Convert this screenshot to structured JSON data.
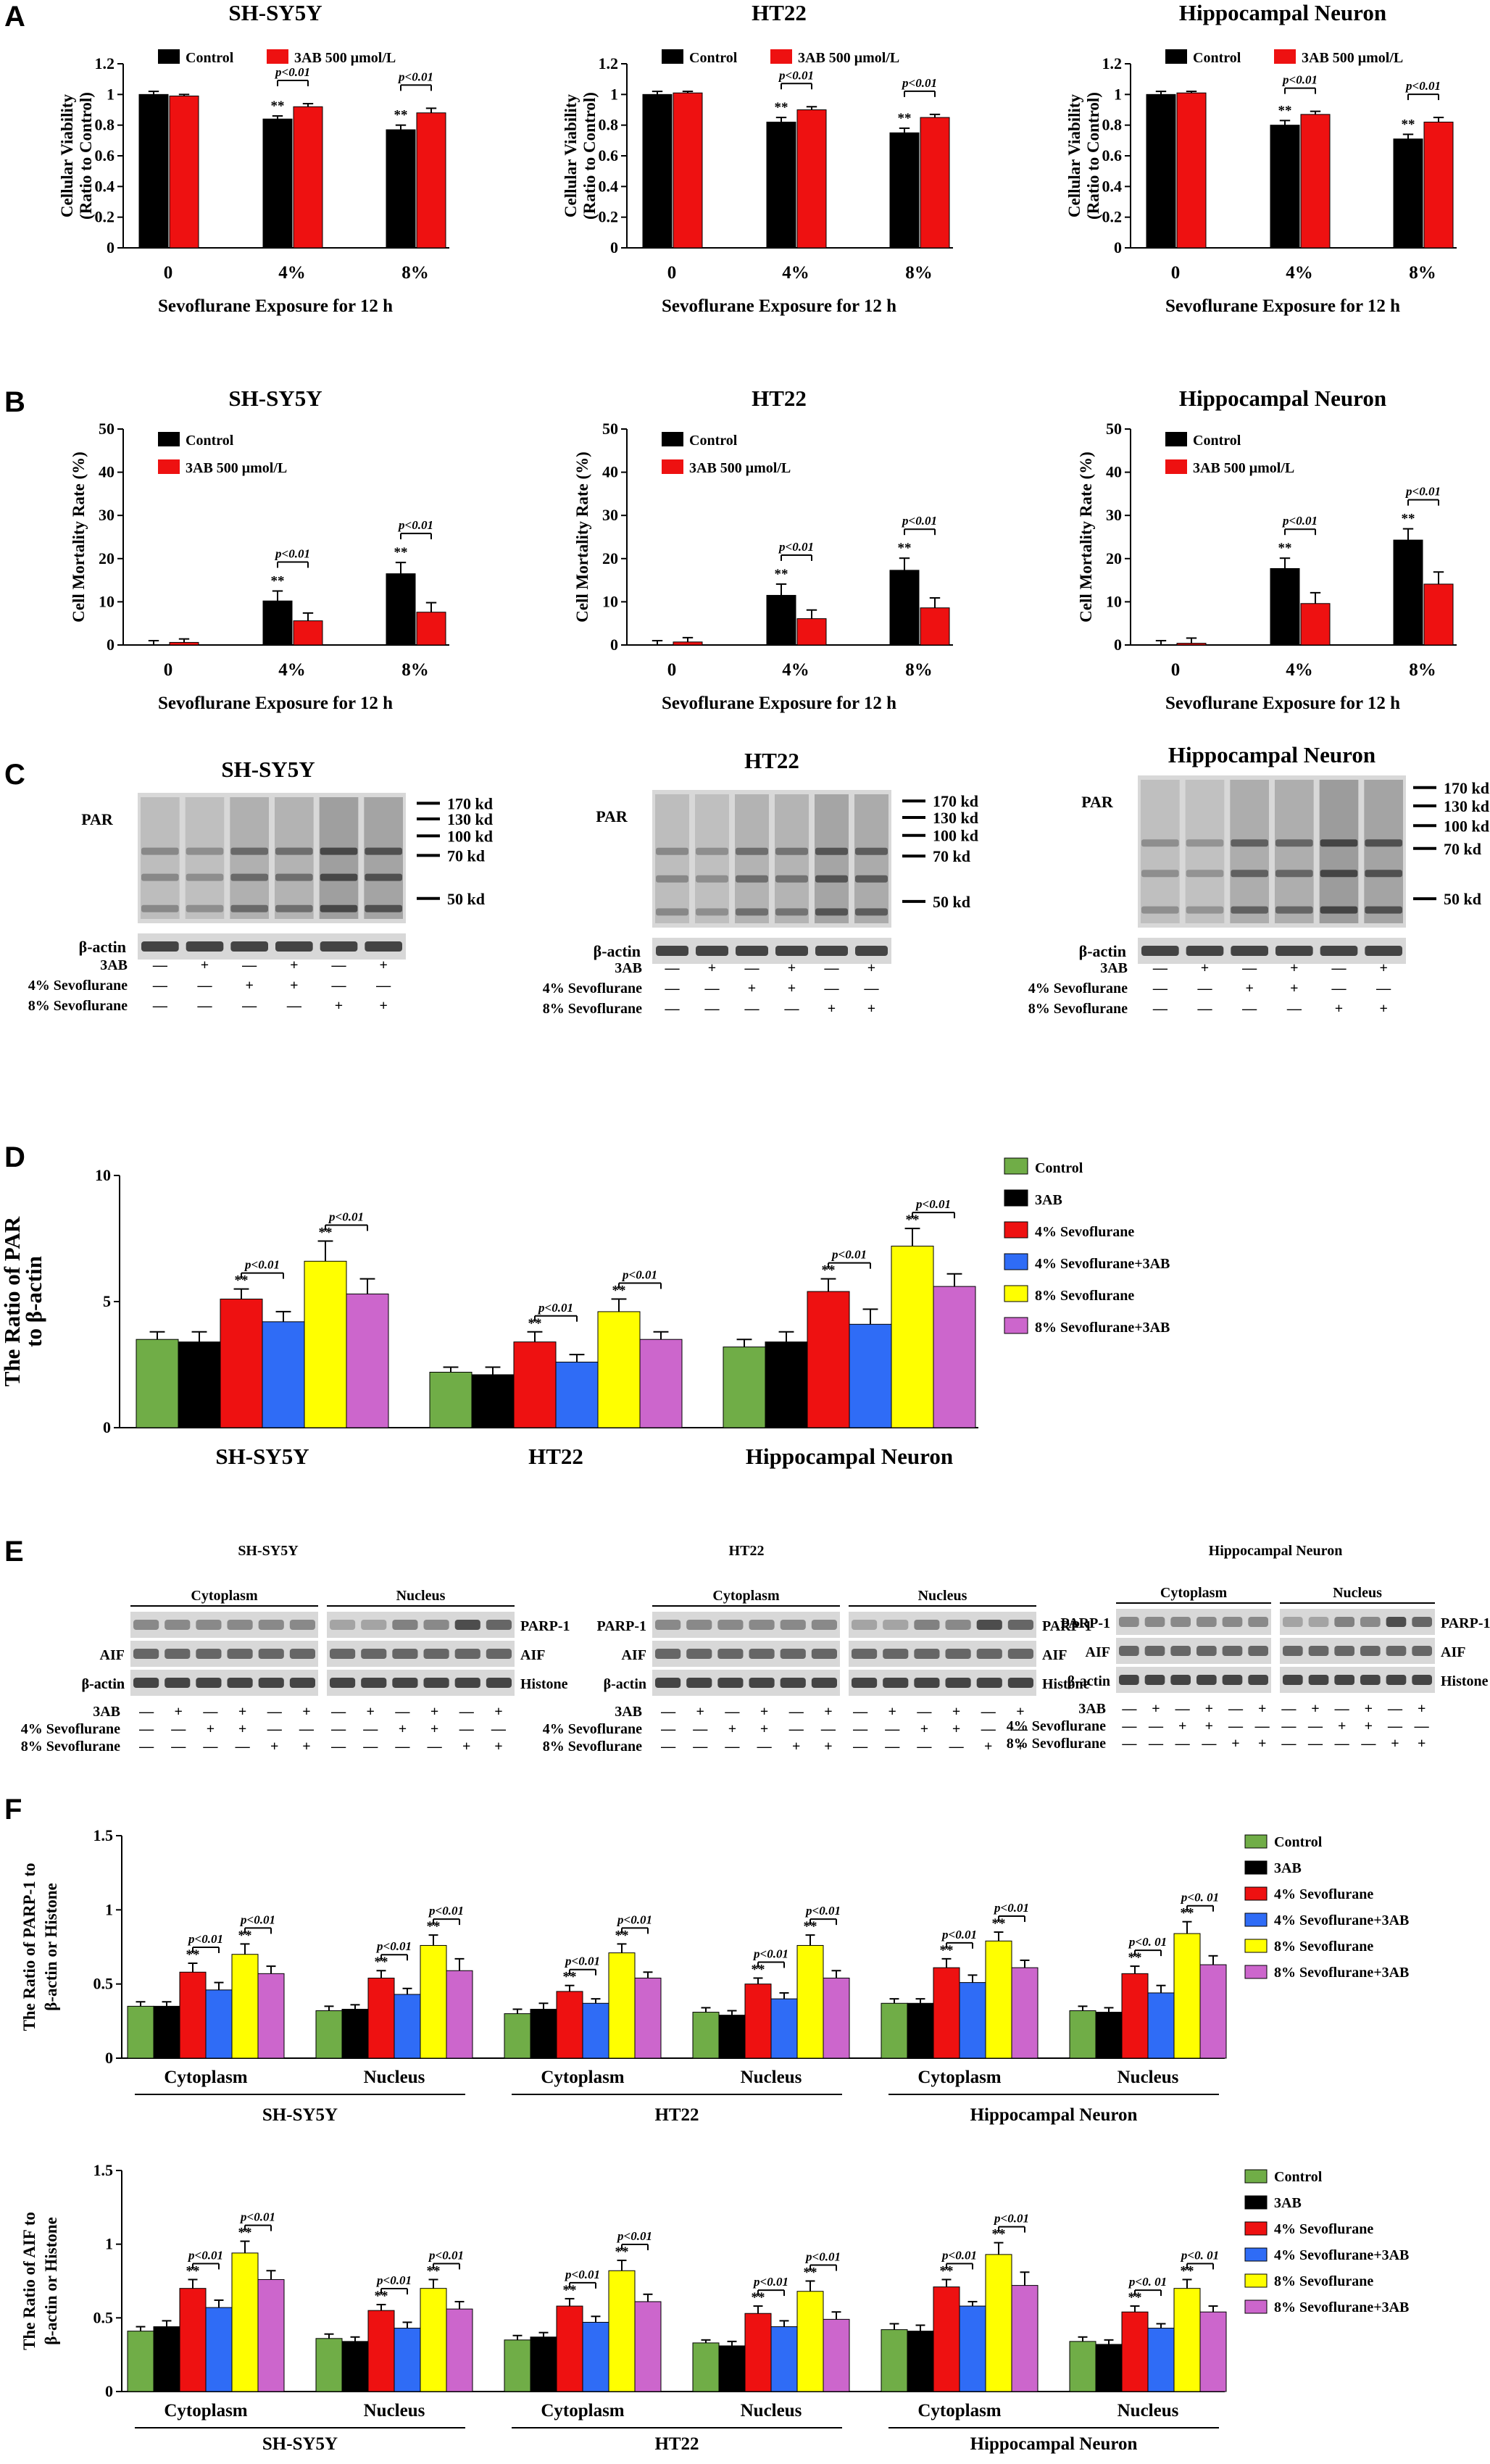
{
  "figure": {
    "panel_labels": [
      "A",
      "B",
      "C",
      "D",
      "E",
      "F"
    ],
    "cells": [
      "SH-SY5Y",
      "HT22",
      "Hippocampal Neuron"
    ],
    "exposure_xlabel": "Sevoflurane Exposure for 12 h",
    "doses": [
      "0",
      "4%",
      "8%"
    ],
    "two_legend": [
      "Control",
      "3AB 500 μmol/L"
    ],
    "six_legend": [
      "Control",
      "3AB",
      "4% Sevoflurane",
      "4% Sevoflurane+3AB",
      "8% Sevoflurane",
      "8% Sevoflurane+3AB"
    ],
    "colors": {
      "black": "#000000",
      "red": "#ee1111",
      "green": "#70ad47",
      "blue": "#2f6cf6",
      "yellow": "#ffff00",
      "purple": "#cc66cc",
      "blot_bg": "#d8d8d8",
      "band": "#2a2a2a"
    },
    "sig_label": "**",
    "p_label": "p<0.01",
    "p_label_alt": "p<0. 01",
    "compartments": [
      "Cytoplasm",
      "Nucleus"
    ]
  },
  "panel_a": {
    "ylabel": [
      "Cellular Viability",
      "(Ratio to Control)"
    ],
    "yticks": [
      "0",
      "0.2",
      "0.4",
      "0.6",
      "0.8",
      "1",
      "1.2"
    ]
  },
  "panel_b": {
    "ylabel": "Cell Mortality Rate (%)",
    "yticks": [
      "0",
      "10",
      "20",
      "30",
      "40",
      "50"
    ]
  },
  "panel_c": {
    "protein": "PAR",
    "loading": "β-actin",
    "markers": [
      "170 kd",
      "130 kd",
      "100 kd",
      "70 kd",
      "50 kd"
    ],
    "treatment_labels": [
      "3AB",
      "4% Sevoflurane",
      "8% Sevoflurane"
    ],
    "pattern": [
      [
        "—",
        "+",
        "—",
        "+",
        "—",
        "+"
      ],
      [
        "—",
        "—",
        "+",
        "+",
        "—",
        "—"
      ],
      [
        "—",
        "—",
        "—",
        "—",
        "+",
        "+"
      ]
    ]
  },
  "panel_d": {
    "ylabel": [
      "The Ratio of PAR",
      "to β-actin"
    ],
    "yticks": [
      "0",
      "5",
      "10"
    ]
  },
  "panel_e": {
    "proteins": [
      "PARP-1",
      "AIF"
    ],
    "loading": [
      "β-actin",
      "Histone"
    ],
    "treatment_labels": [
      "3AB",
      "4% Sevoflurane",
      "8% Sevoflurane"
    ],
    "pattern": [
      [
        "—",
        "+",
        "—",
        "+",
        "—",
        "+"
      ],
      [
        "—",
        "—",
        "+",
        "+",
        "—",
        "—"
      ],
      [
        "—",
        "—",
        "—",
        "—",
        "+",
        "+"
      ]
    ]
  },
  "panel_f": {
    "ylabel_parp": [
      "The Ratio of PARP-1 to",
      "β-actin or Histone"
    ],
    "ylabel_aif": [
      "The Ratio of AIF to",
      "β-actin or Histone"
    ],
    "yticks": [
      "0",
      "0.5",
      "1",
      "1.5"
    ]
  },
  "chart_data": [
    {
      "type": "bar",
      "title": "A — Cellular Viability",
      "xlabel": "Sevoflurane Exposure for 12 h",
      "ylabel": "Cellular Viability (Ratio to Control)",
      "ylim": [
        0,
        1.2
      ],
      "categories": [
        "0",
        "4%",
        "8%"
      ],
      "panels": [
        {
          "name": "SH-SY5Y",
          "series": [
            {
              "name": "Control",
              "values": [
                1.0,
                0.84,
                0.77
              ],
              "err": [
                0.02,
                0.02,
                0.03
              ]
            },
            {
              "name": "3AB 500 μmol/L",
              "values": [
                0.99,
                0.92,
                0.88
              ],
              "err": [
                0.01,
                0.02,
                0.03
              ]
            }
          ],
          "pairs": [
            1,
            2
          ]
        },
        {
          "name": "HT22",
          "series": [
            {
              "name": "Control",
              "values": [
                1.0,
                0.82,
                0.75
              ],
              "err": [
                0.02,
                0.03,
                0.03
              ]
            },
            {
              "name": "3AB 500 μmol/L",
              "values": [
                1.01,
                0.9,
                0.85
              ],
              "err": [
                0.01,
                0.02,
                0.02
              ]
            }
          ],
          "pairs": [
            1,
            2
          ]
        },
        {
          "name": "Hippocampal Neuron",
          "series": [
            {
              "name": "Control",
              "values": [
                1.0,
                0.8,
                0.71
              ],
              "err": [
                0.02,
                0.03,
                0.03
              ]
            },
            {
              "name": "3AB 500 μmol/L",
              "values": [
                1.01,
                0.87,
                0.82
              ],
              "err": [
                0.01,
                0.02,
                0.03
              ]
            }
          ],
          "pairs": [
            1,
            2
          ]
        }
      ]
    },
    {
      "type": "bar",
      "title": "B — Cell Mortality Rate",
      "xlabel": "Sevoflurane Exposure for 12 h",
      "ylabel": "Cell Mortality Rate (%)",
      "ylim": [
        0,
        50
      ],
      "categories": [
        "0",
        "4%",
        "8%"
      ],
      "panels": [
        {
          "name": "SH-SY5Y",
          "series": [
            {
              "name": "Control",
              "values": [
                0,
                10.2,
                16.5
              ],
              "err": [
                1.0,
                2.3,
                2.6
              ]
            },
            {
              "name": "3AB 500 μmol/L",
              "values": [
                0.6,
                5.6,
                7.6
              ],
              "err": [
                0.8,
                1.8,
                2.2
              ]
            }
          ],
          "pairs": [
            1,
            2
          ]
        },
        {
          "name": "HT22",
          "series": [
            {
              "name": "Control",
              "values": [
                0,
                11.5,
                17.3
              ],
              "err": [
                1.0,
                2.6,
                2.8
              ]
            },
            {
              "name": "3AB 500 μmol/L",
              "values": [
                0.7,
                6.1,
                8.6
              ],
              "err": [
                1.0,
                2.0,
                2.3
              ]
            }
          ],
          "pairs": [
            1,
            2
          ]
        },
        {
          "name": "Hippocampal Neuron",
          "series": [
            {
              "name": "Control",
              "values": [
                0,
                17.7,
                24.3
              ],
              "err": [
                1.0,
                2.4,
                2.6
              ]
            },
            {
              "name": "3AB 500 μmol/L",
              "values": [
                0.4,
                9.6,
                14.1
              ],
              "err": [
                1.2,
                2.5,
                2.8
              ]
            }
          ],
          "pairs": [
            1,
            2
          ]
        }
      ]
    },
    {
      "type": "bar",
      "title": "D — The Ratio of PAR to β-actin",
      "ylabel": "The Ratio of PAR to β-actin",
      "ylim": [
        0,
        10
      ],
      "groups": [
        "SH-SY5Y",
        "HT22",
        "Hippocampal Neuron"
      ],
      "series_names": [
        "Control",
        "3AB",
        "4% Sevoflurane",
        "4% Sevoflurane+3AB",
        "8% Sevoflurane",
        "8% Sevoflurane+3AB"
      ],
      "values": [
        [
          3.5,
          3.4,
          5.1,
          4.2,
          6.6,
          5.3
        ],
        [
          2.2,
          2.1,
          3.4,
          2.6,
          4.6,
          3.5
        ],
        [
          3.2,
          3.4,
          5.4,
          4.1,
          7.2,
          5.6
        ]
      ],
      "err": [
        [
          0.3,
          0.4,
          0.4,
          0.4,
          0.8,
          0.6
        ],
        [
          0.2,
          0.3,
          0.4,
          0.3,
          0.5,
          0.3
        ],
        [
          0.3,
          0.4,
          0.5,
          0.6,
          0.7,
          0.5
        ]
      ]
    },
    {
      "type": "bar",
      "title": "F — The Ratio of PARP-1 to β-actin or Histone",
      "ylabel": "The Ratio of PARP-1 to β-actin or Histone",
      "ylim": [
        0,
        1.5
      ],
      "groups": [
        "SH-SY5Y Cytoplasm",
        "SH-SY5Y Nucleus",
        "HT22 Cytoplasm",
        "HT22 Nucleus",
        "Hippocampal Neuron Cytoplasm",
        "Hippocampal Neuron Nucleus"
      ],
      "series_names": [
        "Control",
        "3AB",
        "4% Sevoflurane",
        "4% Sevoflurane+3AB",
        "8% Sevoflurane",
        "8% Sevoflurane+3AB"
      ],
      "values": [
        [
          0.35,
          0.35,
          0.58,
          0.46,
          0.7,
          0.57
        ],
        [
          0.32,
          0.33,
          0.54,
          0.43,
          0.76,
          0.59
        ],
        [
          0.3,
          0.33,
          0.45,
          0.37,
          0.71,
          0.54
        ],
        [
          0.31,
          0.29,
          0.5,
          0.4,
          0.76,
          0.54
        ],
        [
          0.37,
          0.37,
          0.61,
          0.51,
          0.79,
          0.61
        ],
        [
          0.32,
          0.31,
          0.57,
          0.44,
          0.84,
          0.63
        ]
      ],
      "err": [
        [
          0.03,
          0.03,
          0.06,
          0.05,
          0.07,
          0.05
        ],
        [
          0.03,
          0.03,
          0.05,
          0.04,
          0.07,
          0.08
        ],
        [
          0.03,
          0.04,
          0.04,
          0.03,
          0.06,
          0.04
        ],
        [
          0.03,
          0.03,
          0.04,
          0.04,
          0.07,
          0.05
        ],
        [
          0.03,
          0.03,
          0.06,
          0.05,
          0.06,
          0.05
        ],
        [
          0.03,
          0.03,
          0.05,
          0.05,
          0.08,
          0.06
        ]
      ]
    },
    {
      "type": "bar",
      "title": "F — The Ratio of AIF to β-actin or Histone",
      "ylabel": "The Ratio of AIF to β-actin or Histone",
      "ylim": [
        0,
        1.5
      ],
      "groups": [
        "SH-SY5Y Cytoplasm",
        "SH-SY5Y Nucleus",
        "HT22 Cytoplasm",
        "HT22 Nucleus",
        "Hippocampal Neuron Cytoplasm",
        "Hippocampal Neuron Nucleus"
      ],
      "series_names": [
        "Control",
        "3AB",
        "4% Sevoflurane",
        "4% Sevoflurane+3AB",
        "8% Sevoflurane",
        "8% Sevoflurane+3AB"
      ],
      "values": [
        [
          0.41,
          0.44,
          0.7,
          0.57,
          0.94,
          0.76
        ],
        [
          0.36,
          0.34,
          0.55,
          0.43,
          0.7,
          0.56
        ],
        [
          0.35,
          0.37,
          0.58,
          0.47,
          0.82,
          0.61
        ],
        [
          0.33,
          0.31,
          0.53,
          0.44,
          0.68,
          0.49
        ],
        [
          0.42,
          0.41,
          0.71,
          0.58,
          0.93,
          0.72
        ],
        [
          0.34,
          0.32,
          0.54,
          0.43,
          0.7,
          0.54
        ]
      ],
      "err": [
        [
          0.03,
          0.04,
          0.06,
          0.05,
          0.08,
          0.06
        ],
        [
          0.03,
          0.03,
          0.04,
          0.04,
          0.06,
          0.05
        ],
        [
          0.03,
          0.03,
          0.05,
          0.04,
          0.07,
          0.05
        ],
        [
          0.02,
          0.03,
          0.05,
          0.04,
          0.07,
          0.05
        ],
        [
          0.04,
          0.04,
          0.05,
          0.03,
          0.08,
          0.09
        ],
        [
          0.03,
          0.03,
          0.04,
          0.03,
          0.06,
          0.04
        ]
      ]
    }
  ]
}
